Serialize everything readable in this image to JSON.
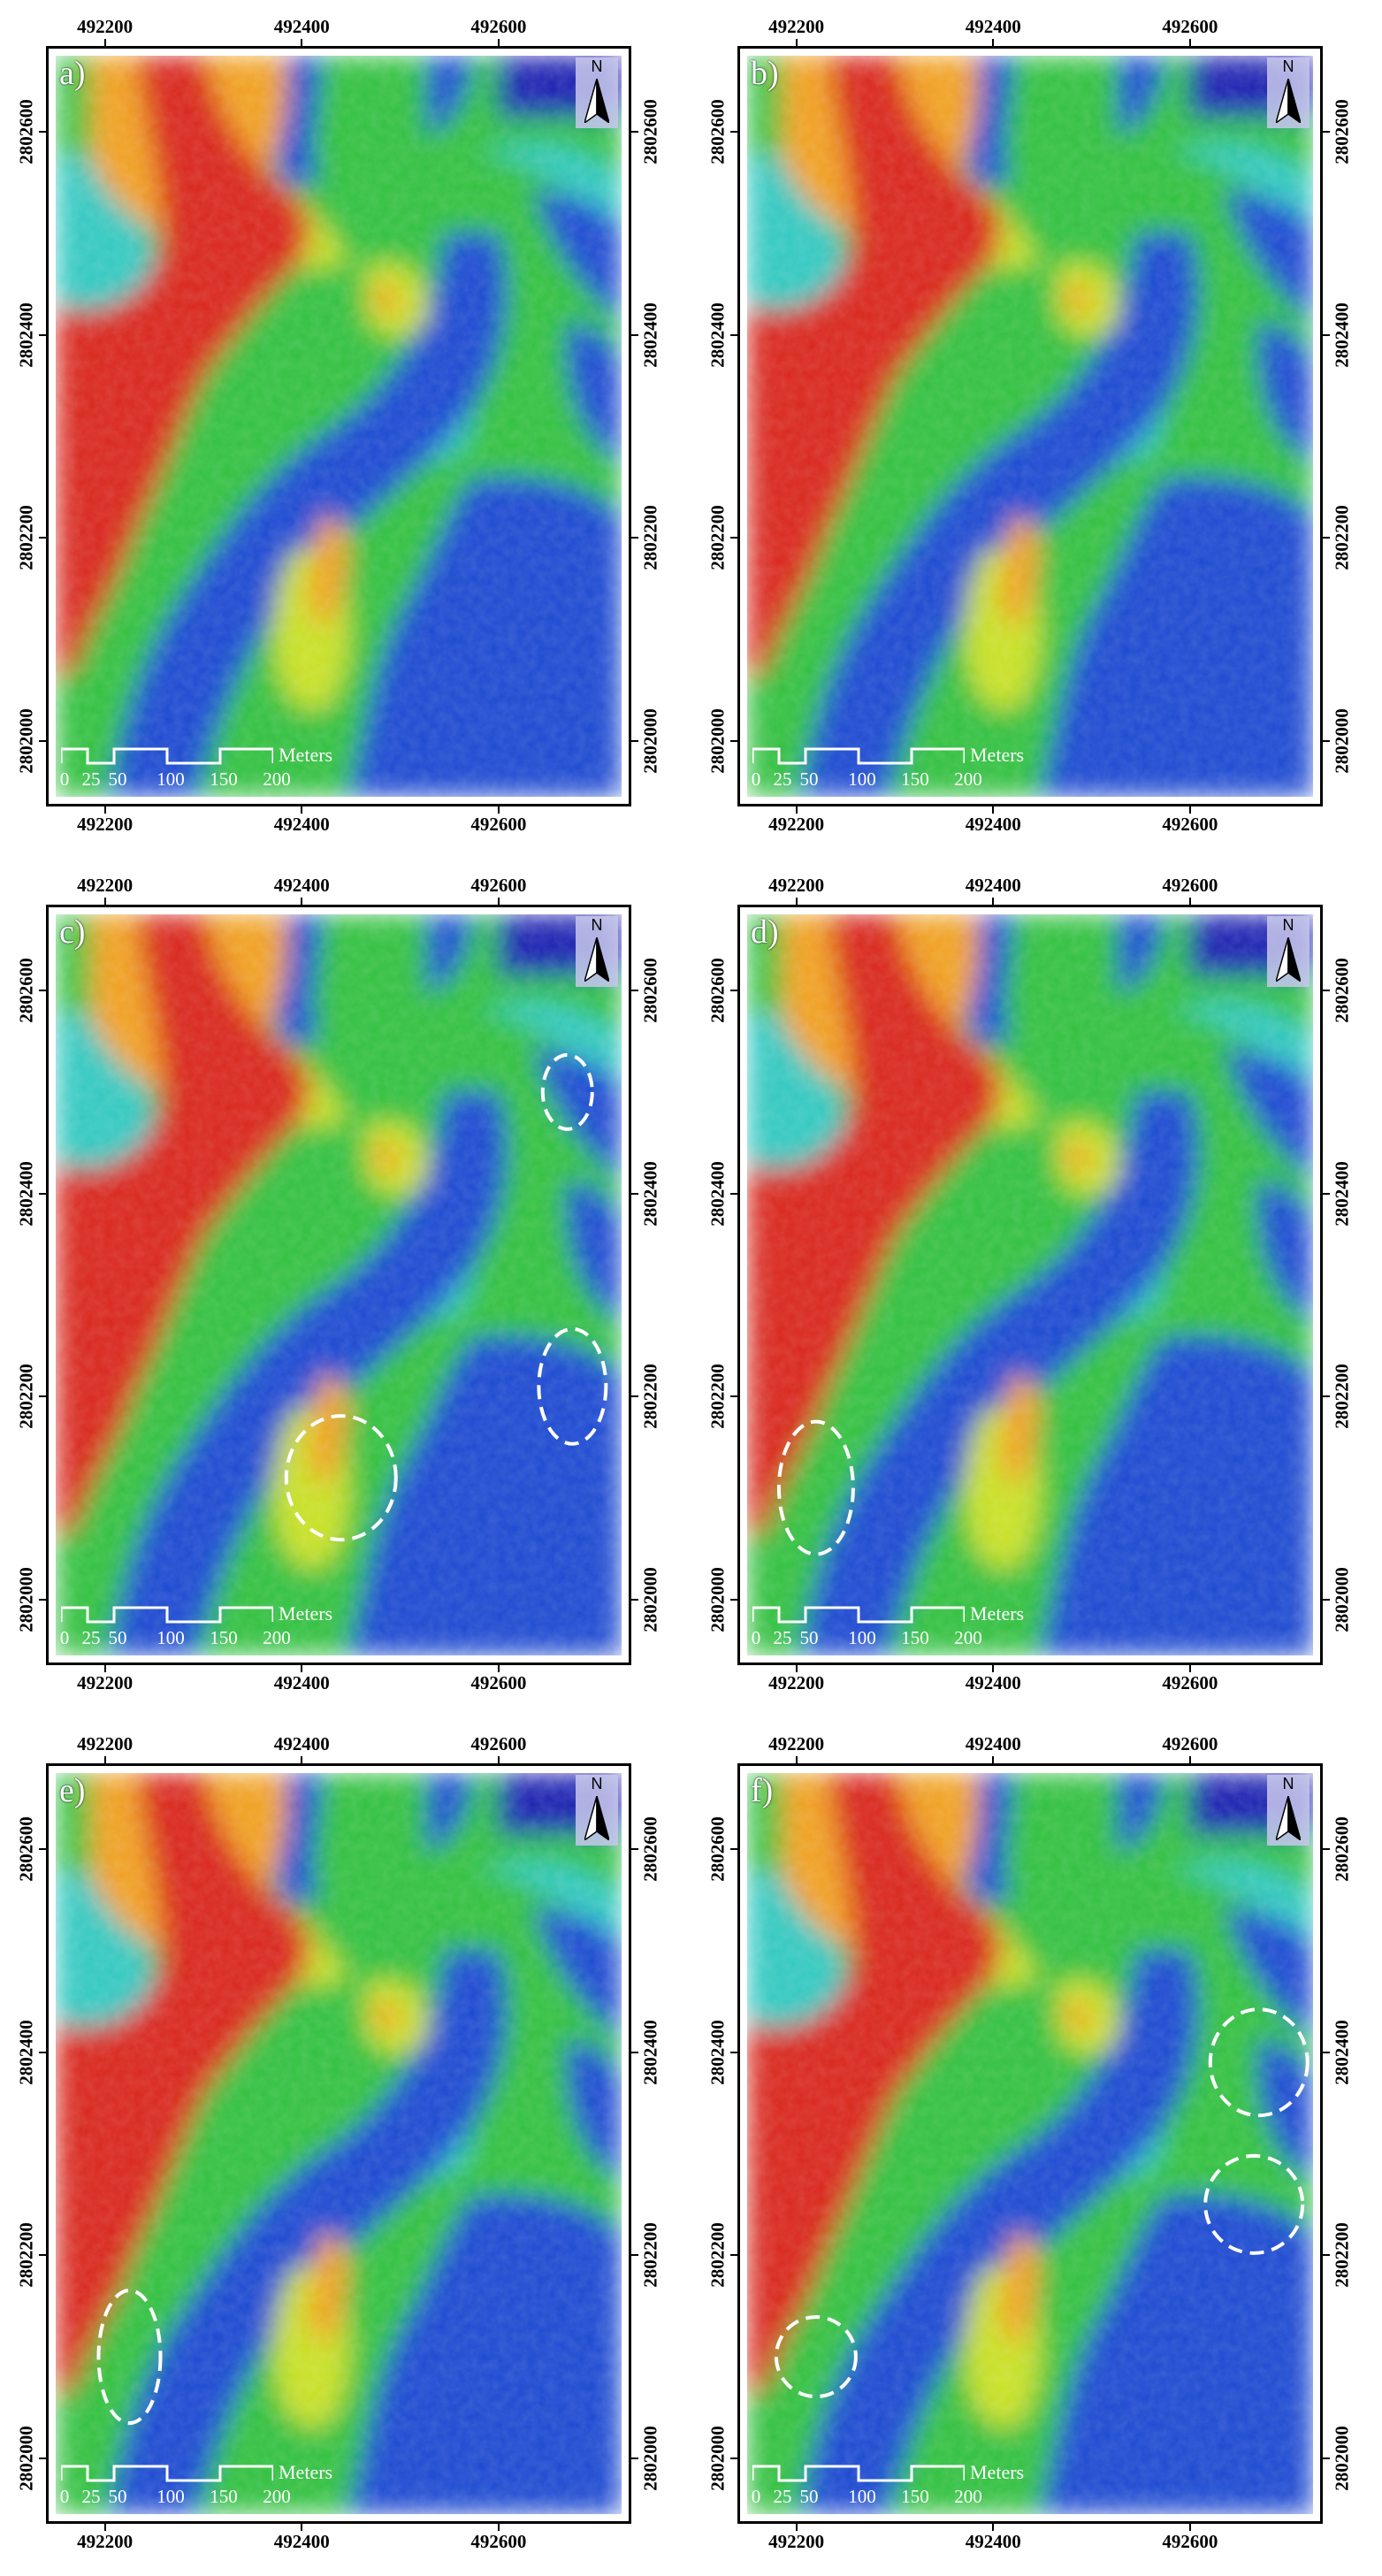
{
  "panels": [
    {
      "label": "a)",
      "circles": []
    },
    {
      "label": "b)",
      "circles": []
    },
    {
      "label": "c)",
      "circles": [
        {
          "x": 492670,
          "y": 2802500,
          "rx": 28,
          "ry": 42
        },
        {
          "x": 492675,
          "y": 2802210,
          "rx": 38,
          "ry": 65
        },
        {
          "x": 492440,
          "y": 2802120,
          "rx": 62,
          "ry": 70
        }
      ]
    },
    {
      "label": "d)",
      "circles": [
        {
          "x": 492220,
          "y": 2802110,
          "rx": 42,
          "ry": 75
        }
      ]
    },
    {
      "label": "e)",
      "circles": [
        {
          "x": 492225,
          "y": 2802100,
          "rx": 35,
          "ry": 75
        }
      ]
    },
    {
      "label": "f)",
      "circles": [
        {
          "x": 492670,
          "y": 2802390,
          "rx": 55,
          "ry": 60
        },
        {
          "x": 492665,
          "y": 2802250,
          "rx": 55,
          "ry": 55
        },
        {
          "x": 492220,
          "y": 2802100,
          "rx": 45,
          "ry": 45
        }
      ]
    }
  ],
  "axes": {
    "x_ticks": [
      "492200",
      "492400",
      "492600"
    ],
    "x_values": [
      492200,
      492400,
      492600
    ],
    "y_ticks": [
      "2802600",
      "2802400",
      "2802200",
      "2802000"
    ],
    "y_values": [
      2802600,
      2802400,
      2802200,
      2802000
    ],
    "xlim": [
      492150,
      492725
    ],
    "ylim": [
      2801945,
      2802675
    ]
  },
  "north_arrow": {
    "letter": "N"
  },
  "scale_bar": {
    "unit": "Meters",
    "ticks": [
      "0",
      "25",
      "50",
      "100",
      "150",
      "200"
    ],
    "tick_values": [
      0,
      25,
      50,
      100,
      150,
      200
    ]
  },
  "colors": {
    "high": "#d8261c",
    "upper": "#f0a020",
    "mid_high": "#c8e028",
    "mid": "#30c040",
    "low_mid": "#30c8c0",
    "low": "#1a48d0",
    "lowest": "#1a22b0",
    "frame": "#000000",
    "annotation": "#ffffff"
  }
}
